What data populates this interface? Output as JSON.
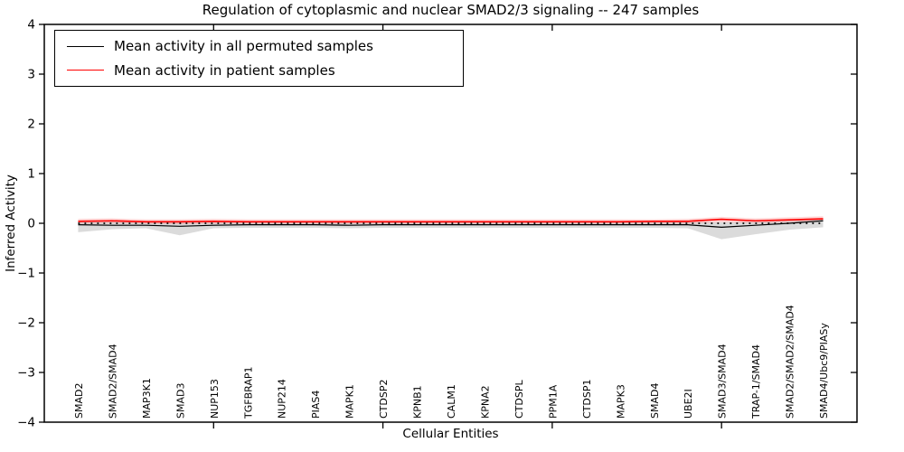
{
  "chart_data": {
    "type": "line",
    "title": "Regulation of cytoplasmic and nuclear SMAD2/3 signaling -- 247 samples",
    "xlabel": "Cellular Entities",
    "ylabel": "Inferred Activity",
    "ylim": [
      -4,
      4
    ],
    "yticks": [
      -4,
      -3,
      -2,
      -1,
      0,
      1,
      2,
      3,
      4
    ],
    "xlim": [
      0,
      24
    ],
    "xticks": [
      5,
      10,
      15,
      20
    ],
    "grid": false,
    "zero_line": {
      "value": 0,
      "style": "dotted",
      "color": "#000000"
    },
    "categories": [
      "SMAD2",
      "SMAD2/SMAD4",
      "MAP3K1",
      "SMAD3",
      "NUP153",
      "TGFBRAP1",
      "NUP214",
      "PIAS4",
      "MAPK1",
      "CTDSP2",
      "KPNB1",
      "CALM1",
      "KPNA2",
      "CTDSPL",
      "PPM1A",
      "CTDSP1",
      "MAPK3",
      "SMAD4",
      "UBE2I",
      "SMAD3/SMAD4",
      "TRAP-1/SMAD4",
      "SMAD2/SMAD2/SMAD4",
      "SMAD4/Ubc9/PIASy"
    ],
    "series": [
      {
        "name": "Mean activity in all permuted samples",
        "color": "#000000",
        "values": [
          -0.03,
          -0.04,
          -0.04,
          -0.06,
          -0.04,
          -0.03,
          -0.03,
          -0.03,
          -0.04,
          -0.03,
          -0.03,
          -0.03,
          -0.03,
          -0.03,
          -0.03,
          -0.03,
          -0.03,
          -0.03,
          -0.03,
          -0.08,
          -0.04,
          0.0,
          0.05
        ],
        "band_lower": [
          -0.18,
          -0.12,
          -0.1,
          -0.24,
          -0.1,
          -0.09,
          -0.09,
          -0.09,
          -0.1,
          -0.09,
          -0.09,
          -0.09,
          -0.09,
          -0.09,
          -0.09,
          -0.09,
          -0.09,
          -0.09,
          -0.1,
          -0.32,
          -0.22,
          -0.13,
          -0.08
        ],
        "band_upper": [
          0.04,
          0.03,
          0.02,
          0.02,
          0.03,
          0.03,
          0.03,
          0.03,
          0.02,
          0.03,
          0.03,
          0.03,
          0.03,
          0.03,
          0.03,
          0.03,
          0.03,
          0.03,
          0.03,
          0.02,
          0.03,
          0.05,
          0.1
        ],
        "band_color": "rgba(90,90,90,0.22)"
      },
      {
        "name": "Mean activity in patient samples",
        "color": "#ff0000",
        "values": [
          0.04,
          0.05,
          0.03,
          0.03,
          0.04,
          0.03,
          0.03,
          0.03,
          0.03,
          0.03,
          0.03,
          0.03,
          0.03,
          0.03,
          0.03,
          0.03,
          0.03,
          0.04,
          0.04,
          0.08,
          0.05,
          0.07,
          0.09
        ],
        "band_lower": [
          -0.01,
          0.0,
          -0.01,
          -0.02,
          -0.01,
          -0.01,
          -0.01,
          -0.01,
          -0.01,
          -0.01,
          -0.01,
          -0.01,
          -0.01,
          -0.01,
          -0.01,
          -0.01,
          -0.01,
          -0.01,
          -0.01,
          0.02,
          0.0,
          0.02,
          0.04
        ],
        "band_upper": [
          0.09,
          0.1,
          0.08,
          0.08,
          0.09,
          0.08,
          0.08,
          0.08,
          0.08,
          0.08,
          0.08,
          0.08,
          0.08,
          0.08,
          0.08,
          0.08,
          0.08,
          0.08,
          0.09,
          0.13,
          0.1,
          0.12,
          0.14
        ],
        "band_color": "rgba(255,0,0,0.16)"
      }
    ],
    "legend": {
      "position": "upper left",
      "entries": [
        {
          "label": "Mean activity in all permuted samples",
          "color": "#000000"
        },
        {
          "label": "Mean activity in patient samples",
          "color": "#ff0000"
        }
      ]
    },
    "colors": {
      "axis": "#000000",
      "background": "#ffffff"
    }
  }
}
